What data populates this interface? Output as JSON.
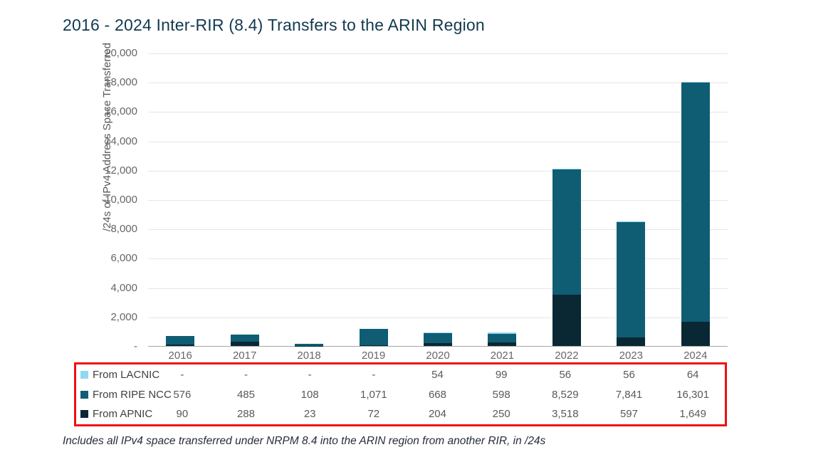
{
  "title": "2016 - 2024 Inter-RIR (8.4) Transfers to the ARIN Region",
  "footnote": "Includes all IPv4 space transferred under NRPM 8.4 into the ARIN region from another RIR, in /24s",
  "colors": {
    "title": "#12394e",
    "highlight_border": "#ee1111",
    "lacnic": "#90d8f2",
    "ripe_ncc": "#0e5d73",
    "apnic": "#0a2734"
  },
  "chart_data": {
    "type": "bar",
    "stacked": true,
    "title": "2016 - 2024 Inter-RIR (8.4) Transfers to the ARIN Region",
    "xlabel": "",
    "ylabel": "/24s of IPv4 Address Space Transferred",
    "ylim": [
      0,
      20000
    ],
    "grid": true,
    "legend_position": "table-below-chart",
    "categories": [
      "2016",
      "2017",
      "2018",
      "2019",
      "2020",
      "2021",
      "2022",
      "2023",
      "2024"
    ],
    "series": [
      {
        "name": "From LACNIC",
        "color": "#90d8f2",
        "values": [
          0,
          0,
          0,
          0,
          54,
          99,
          56,
          56,
          64
        ],
        "display": [
          "-",
          "-",
          "-",
          "-",
          "54",
          "99",
          "56",
          "56",
          "64"
        ]
      },
      {
        "name": "From RIPE NCC",
        "color": "#0e5d73",
        "values": [
          576,
          485,
          108,
          1071,
          668,
          598,
          8529,
          7841,
          16301
        ],
        "display": [
          "576",
          "485",
          "108",
          "1,071",
          "668",
          "598",
          "8,529",
          "7,841",
          "16,301"
        ]
      },
      {
        "name": "From APNIC",
        "color": "#0a2734",
        "values": [
          90,
          288,
          23,
          72,
          204,
          250,
          3518,
          597,
          1649
        ],
        "display": [
          "90",
          "288",
          "23",
          "72",
          "204",
          "250",
          "3,518",
          "597",
          "1,649"
        ]
      }
    ],
    "stack_order_bottom_to_top": [
      "From APNIC",
      "From RIPE NCC",
      "From LACNIC"
    ],
    "yticks": [
      {
        "value": 0,
        "label": "-"
      },
      {
        "value": 2000,
        "label": "2,000"
      },
      {
        "value": 4000,
        "label": "4,000"
      },
      {
        "value": 6000,
        "label": "6,000"
      },
      {
        "value": 8000,
        "label": "8,000"
      },
      {
        "value": 10000,
        "label": "10,000"
      },
      {
        "value": 12000,
        "label": "12,000"
      },
      {
        "value": 14000,
        "label": "14,000"
      },
      {
        "value": 16000,
        "label": "16,000"
      },
      {
        "value": 18000,
        "label": "18,000"
      },
      {
        "value": 20000,
        "label": "20,000"
      }
    ]
  }
}
